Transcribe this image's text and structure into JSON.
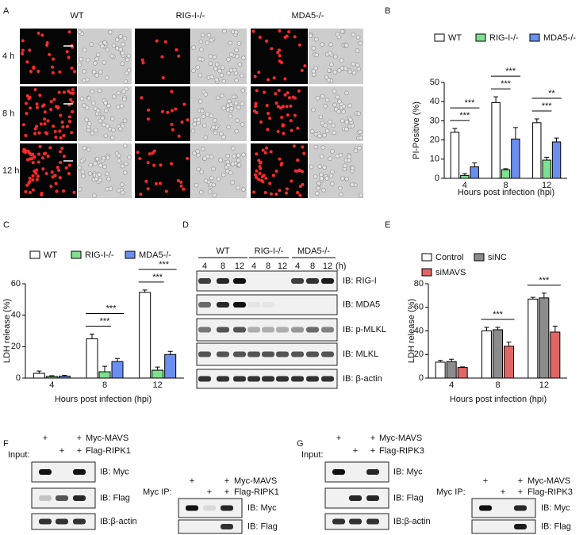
{
  "panel_a": {
    "label": "A",
    "columns": [
      "WT",
      "RIG-I-/-",
      "MDA5-/-"
    ],
    "rows": [
      "4 h",
      "8 h",
      "12 h"
    ]
  },
  "chart_data": [
    {
      "type": "bar",
      "label": "B",
      "ylabel": "PI-Positive (%)",
      "xlabel": "Hours post infection (hpi)",
      "categories": [
        "4",
        "8",
        "12"
      ],
      "series": [
        {
          "name": "WT",
          "color": "#ffffff",
          "values": [
            24,
            39.5,
            29
          ],
          "errors": [
            2,
            3,
            2
          ]
        },
        {
          "name": "RIG-I-/-",
          "color": "#7fe08f",
          "values": [
            1.5,
            4.5,
            9.5
          ],
          "errors": [
            1,
            0.5,
            1.5
          ]
        },
        {
          "name": "MDA5-/-",
          "color": "#6b8ff0",
          "values": [
            6,
            20.5,
            19
          ],
          "errors": [
            2,
            6,
            2
          ]
        }
      ],
      "ylim": [
        0,
        50
      ],
      "yticks": [
        0,
        10,
        20,
        30,
        40,
        50
      ],
      "annotations": [
        {
          "text": "***",
          "category": "4",
          "series": [
            "WT",
            "RIG-I-/-"
          ]
        },
        {
          "text": "***",
          "category": "4",
          "series": [
            "WT",
            "MDA5-/-"
          ]
        },
        {
          "text": "***",
          "category": "8",
          "series": [
            "WT",
            "RIG-I-/-"
          ]
        },
        {
          "text": "***",
          "category": "8",
          "series": [
            "WT",
            "MDA5-/-"
          ]
        },
        {
          "text": "***",
          "category": "12",
          "series": [
            "WT",
            "RIG-I-/-"
          ]
        },
        {
          "text": "**",
          "category": "12",
          "series": [
            "WT",
            "MDA5-/-"
          ]
        }
      ]
    },
    {
      "type": "bar",
      "label": "C",
      "ylabel": "LDH release (%)",
      "xlabel": "Hours post infection (hpi)",
      "categories": [
        "4",
        "8",
        "12"
      ],
      "series": [
        {
          "name": "WT",
          "color": "#ffffff",
          "values": [
            3,
            25,
            54.5
          ],
          "errors": [
            1.5,
            3,
            1.5
          ]
        },
        {
          "name": "RIG-I-/-",
          "color": "#7fe08f",
          "values": [
            1,
            4,
            5
          ],
          "errors": [
            0.5,
            3.5,
            2
          ]
        },
        {
          "name": "MDA5-/-",
          "color": "#6b8ff0",
          "values": [
            1.2,
            10.5,
            15
          ],
          "errors": [
            0.5,
            2,
            2
          ]
        }
      ],
      "ylim": [
        0,
        60
      ],
      "yticks": [
        0,
        20,
        40,
        60
      ],
      "annotations": [
        {
          "text": "***",
          "category": "8",
          "series": [
            "WT",
            "RIG-I-/-"
          ]
        },
        {
          "text": "***",
          "category": "8",
          "series": [
            "WT",
            "MDA5-/-"
          ]
        },
        {
          "text": "***",
          "category": "12",
          "series": [
            "WT",
            "RIG-I-/-"
          ]
        },
        {
          "text": "***",
          "category": "12",
          "series": [
            "WT",
            "MDA5-/-"
          ]
        }
      ]
    },
    {
      "type": "bar",
      "label": "E",
      "ylabel": "LDH release (%)",
      "xlabel": "Hours post infection (hpi)",
      "categories": [
        "4",
        "8",
        "12"
      ],
      "series": [
        {
          "name": "Control",
          "color": "#ffffff",
          "values": [
            13.5,
            40,
            67
          ],
          "errors": [
            1.5,
            3,
            1.5
          ]
        },
        {
          "name": "siNC",
          "color": "#8c8c8c",
          "values": [
            14,
            41,
            68
          ],
          "errors": [
            2,
            2,
            4
          ]
        },
        {
          "name": "siMAVS",
          "color": "#e06666",
          "values": [
            9,
            27,
            39
          ],
          "errors": [
            0.5,
            3.5,
            5
          ]
        }
      ],
      "ylim": [
        0,
        80
      ],
      "yticks": [
        0,
        20,
        40,
        60,
        80
      ],
      "annotations": [
        {
          "text": "***",
          "category": "8",
          "series": [
            "Control",
            "siMAVS"
          ]
        },
        {
          "text": "***",
          "category": "12",
          "series": [
            "Control",
            "siMAVS"
          ]
        }
      ]
    }
  ],
  "panel_d": {
    "label": "D",
    "groups": [
      "WT",
      "RIG-I-/-",
      "MDA5-/-"
    ],
    "unit": "(h)",
    "lanes": [
      "4",
      "8",
      "12",
      "4",
      "8",
      "12",
      "4",
      "8",
      "12"
    ],
    "blots": [
      "IB: RIG-I",
      "IB: MDA5",
      "IB: p-MLKL",
      "IB: MLKL",
      "IB: β-actin"
    ]
  },
  "panel_f": {
    "label": "F",
    "input": {
      "title": "Input:",
      "treatments": [
        {
          "name": "Myc-MAVS",
          "lanes": [
            "+",
            null,
            "+"
          ]
        },
        {
          "name": "Flag-RIPK1",
          "lanes": [
            null,
            "+",
            "+"
          ]
        }
      ],
      "blots": [
        "IB: Myc",
        "IB: Flag",
        "IB:β-actin"
      ]
    },
    "ip": {
      "title": "Myc IP:",
      "treatments": [
        {
          "name": "Myc-MAVS",
          "lanes": [
            "+",
            null,
            "+"
          ]
        },
        {
          "name": "Flag-RIPK1",
          "lanes": [
            null,
            "+",
            "+"
          ]
        }
      ],
      "blots": [
        "IB: Myc",
        "IB: Flag"
      ]
    }
  },
  "panel_g": {
    "label": "G",
    "input": {
      "title": "Input:",
      "treatments": [
        {
          "name": "Myc-MAVS",
          "lanes": [
            "+",
            null,
            "+"
          ]
        },
        {
          "name": "Flag-RIPK3",
          "lanes": [
            null,
            "+",
            "+"
          ]
        }
      ],
      "blots": [
        "IB: Myc",
        "IB: Flag",
        "IB:β-actin"
      ]
    },
    "ip": {
      "title": "Myc IP:",
      "treatments": [
        {
          "name": "Myc-MAVS",
          "lanes": [
            "+",
            null,
            "+"
          ]
        },
        {
          "name": "Flag-RIPK3",
          "lanes": [
            null,
            "+",
            "+"
          ]
        }
      ],
      "blots": [
        "IB: Myc",
        "IB: Flag"
      ]
    }
  }
}
